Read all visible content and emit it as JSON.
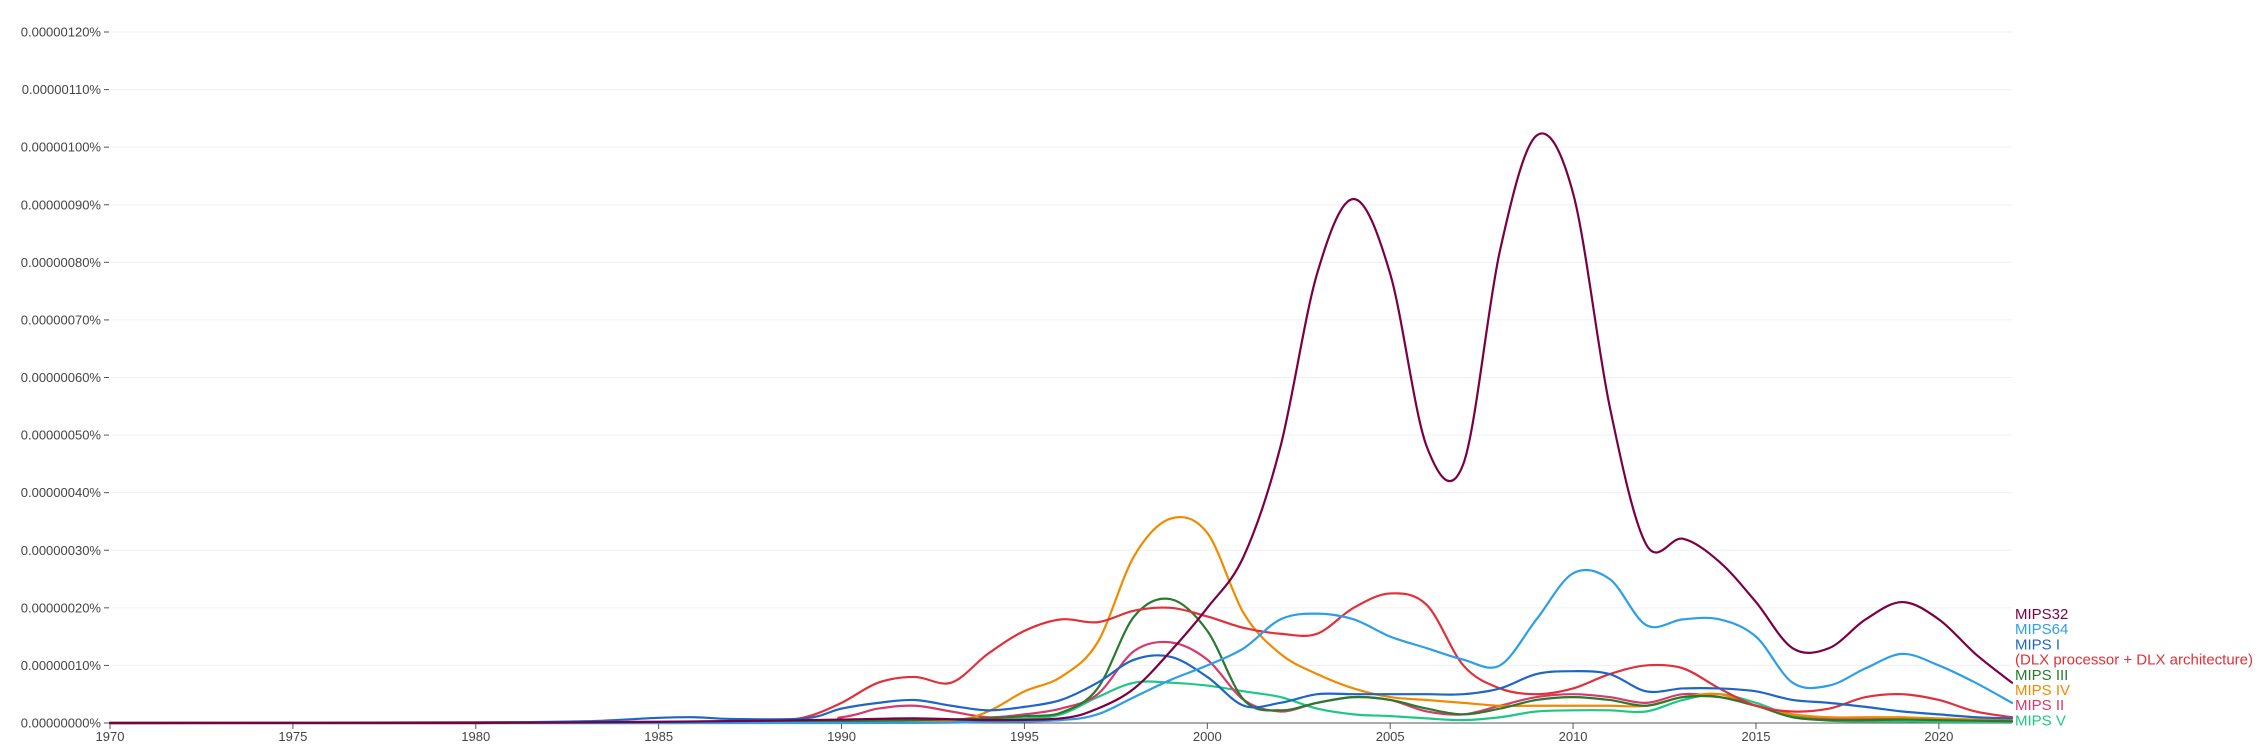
{
  "chart_data": {
    "type": "line",
    "title": "",
    "xlabel": "",
    "ylabel": "",
    "xlim": [
      1970,
      2022
    ],
    "ylim": [
      0,
      1.2e-06
    ],
    "grid": true,
    "legend_placement": "right end of lines",
    "x_ticks": [
      1970,
      1975,
      1980,
      1985,
      1990,
      1995,
      2000,
      2005,
      2010,
      2015,
      2020
    ],
    "x_tick_labels": [
      "1970",
      "1975",
      "1980",
      "1985",
      "1990",
      "1995",
      "2000",
      "2005",
      "2010",
      "2015",
      "2020"
    ],
    "y_ticks": [
      0,
      1e-07,
      2e-07,
      3e-07,
      4e-07,
      5e-07,
      6e-07,
      7e-07,
      8e-07,
      9e-07,
      1e-06,
      1.1e-06,
      1.2e-06
    ],
    "y_tick_labels": [
      "0.00000000%",
      "0.00000010%",
      "0.00000020%",
      "0.00000030%",
      "0.00000040%",
      "0.00000050%",
      "0.00000060%",
      "0.00000070%",
      "0.00000080%",
      "0.00000090%",
      "0.00000100%",
      "0.00000110%",
      "0.00000120%"
    ],
    "series": [
      {
        "name": "MIPS32",
        "color": "#7b0041",
        "points": [
          [
            1970,
            0
          ],
          [
            1980,
            0
          ],
          [
            1985,
            2e-09
          ],
          [
            1988,
            4e-09
          ],
          [
            1990,
            6e-09
          ],
          [
            1992,
            8e-09
          ],
          [
            1994,
            5e-09
          ],
          [
            1996,
            8e-09
          ],
          [
            1997,
            2.5e-08
          ],
          [
            1998,
            6e-08
          ],
          [
            1999,
            1.25e-07
          ],
          [
            2000,
            2e-07
          ],
          [
            2001,
            2.9e-07
          ],
          [
            2002,
            4.8e-07
          ],
          [
            2003,
            7.8e-07
          ],
          [
            2004,
            9.1e-07
          ],
          [
            2005,
            7.8e-07
          ],
          [
            2006,
            4.8e-07
          ],
          [
            2007,
            4.5e-07
          ],
          [
            2008,
            8.2e-07
          ],
          [
            2009,
            1.02e-06
          ],
          [
            2010,
            9.2e-07
          ],
          [
            2011,
            5.5e-07
          ],
          [
            2012,
            3.1e-07
          ],
          [
            2013,
            3.2e-07
          ],
          [
            2014,
            2.8e-07
          ],
          [
            2015,
            2.1e-07
          ],
          [
            2016,
            1.3e-07
          ],
          [
            2017,
            1.3e-07
          ],
          [
            2018,
            1.8e-07
          ],
          [
            2019,
            2.1e-07
          ],
          [
            2020,
            1.8e-07
          ],
          [
            2021,
            1.2e-07
          ],
          [
            2022,
            7e-08
          ]
        ]
      },
      {
        "name": "MIPS64",
        "color": "#2e9fe6",
        "points": [
          [
            1970,
            0
          ],
          [
            1990,
            0
          ],
          [
            1994,
            2e-09
          ],
          [
            1996,
            5e-09
          ],
          [
            1997,
            1.5e-08
          ],
          [
            1998,
            4.5e-08
          ],
          [
            1999,
            7.5e-08
          ],
          [
            2000,
            1e-07
          ],
          [
            2001,
            1.3e-07
          ],
          [
            2002,
            1.8e-07
          ],
          [
            2003,
            1.9e-07
          ],
          [
            2004,
            1.8e-07
          ],
          [
            2005,
            1.5e-07
          ],
          [
            2006,
            1.3e-07
          ],
          [
            2007,
            1.1e-07
          ],
          [
            2008,
            1e-07
          ],
          [
            2009,
            1.8e-07
          ],
          [
            2010,
            2.6e-07
          ],
          [
            2011,
            2.5e-07
          ],
          [
            2012,
            1.7e-07
          ],
          [
            2013,
            1.8e-07
          ],
          [
            2014,
            1.8e-07
          ],
          [
            2015,
            1.5e-07
          ],
          [
            2016,
            7e-08
          ],
          [
            2017,
            6.5e-08
          ],
          [
            2018,
            9.5e-08
          ],
          [
            2019,
            1.2e-07
          ],
          [
            2020,
            1e-07
          ],
          [
            2021,
            7e-08
          ],
          [
            2022,
            3.5e-08
          ]
        ]
      },
      {
        "name": "MIPS I",
        "color": "#1f66c4",
        "points": [
          [
            1970,
            0
          ],
          [
            1980,
            1e-09
          ],
          [
            1983,
            3e-09
          ],
          [
            1985,
            9e-09
          ],
          [
            1986,
            1e-08
          ],
          [
            1987,
            7e-09
          ],
          [
            1989,
            8e-09
          ],
          [
            1990,
            2.5e-08
          ],
          [
            1991,
            3.5e-08
          ],
          [
            1992,
            4e-08
          ],
          [
            1993,
            3e-08
          ],
          [
            1994,
            2.2e-08
          ],
          [
            1995,
            2.8e-08
          ],
          [
            1996,
            4e-08
          ],
          [
            1997,
            7e-08
          ],
          [
            1998,
            1.1e-07
          ],
          [
            1999,
            1.15e-07
          ],
          [
            2000,
            8e-08
          ],
          [
            2001,
            3e-08
          ],
          [
            2002,
            3.5e-08
          ],
          [
            2003,
            5e-08
          ],
          [
            2004,
            5e-08
          ],
          [
            2005,
            5e-08
          ],
          [
            2006,
            5e-08
          ],
          [
            2007,
            5e-08
          ],
          [
            2008,
            6e-08
          ],
          [
            2009,
            8.5e-08
          ],
          [
            2010,
            9e-08
          ],
          [
            2011,
            8.5e-08
          ],
          [
            2012,
            5.5e-08
          ],
          [
            2013,
            6e-08
          ],
          [
            2014,
            6e-08
          ],
          [
            2015,
            5.5e-08
          ],
          [
            2016,
            4e-08
          ],
          [
            2017,
            3.5e-08
          ],
          [
            2018,
            2.8e-08
          ],
          [
            2019,
            2e-08
          ],
          [
            2020,
            1.5e-08
          ],
          [
            2021,
            1e-08
          ],
          [
            2022,
            8e-09
          ]
        ]
      },
      {
        "name": "(DLX processor + DLX architecture)",
        "color": "#e0303a",
        "points": [
          [
            1970,
            0
          ],
          [
            1985,
            2e-09
          ],
          [
            1988,
            5e-09
          ],
          [
            1989,
            1e-08
          ],
          [
            1990,
            3.5e-08
          ],
          [
            1991,
            7e-08
          ],
          [
            1992,
            8e-08
          ],
          [
            1993,
            7e-08
          ],
          [
            1994,
            1.2e-07
          ],
          [
            1995,
            1.6e-07
          ],
          [
            1996,
            1.8e-07
          ],
          [
            1997,
            1.75e-07
          ],
          [
            1998,
            1.95e-07
          ],
          [
            1999,
            2e-07
          ],
          [
            2000,
            1.85e-07
          ],
          [
            2001,
            1.65e-07
          ],
          [
            2002,
            1.55e-07
          ],
          [
            2003,
            1.55e-07
          ],
          [
            2004,
            2e-07
          ],
          [
            2005,
            2.25e-07
          ],
          [
            2006,
            2.05e-07
          ],
          [
            2007,
            1e-07
          ],
          [
            2008,
            6e-08
          ],
          [
            2009,
            5e-08
          ],
          [
            2010,
            6e-08
          ],
          [
            2011,
            8.5e-08
          ],
          [
            2012,
            1e-07
          ],
          [
            2013,
            9.5e-08
          ],
          [
            2014,
            6e-08
          ],
          [
            2015,
            3e-08
          ],
          [
            2016,
            2e-08
          ],
          [
            2017,
            2.5e-08
          ],
          [
            2018,
            4.5e-08
          ],
          [
            2019,
            5e-08
          ],
          [
            2020,
            4e-08
          ],
          [
            2021,
            2e-08
          ],
          [
            2022,
            1e-08
          ]
        ]
      },
      {
        "name": "MIPS III",
        "color": "#2a7a2e",
        "points": [
          [
            1970,
            0
          ],
          [
            1985,
            0
          ],
          [
            1990,
            3e-09
          ],
          [
            1992,
            5e-09
          ],
          [
            1994,
            8e-09
          ],
          [
            1995,
            1.2e-08
          ],
          [
            1996,
            1.8e-08
          ],
          [
            1997,
            6e-08
          ],
          [
            1998,
            1.85e-07
          ],
          [
            1999,
            2.15e-07
          ],
          [
            2000,
            1.6e-07
          ],
          [
            2001,
            4e-08
          ],
          [
            2002,
            2.2e-08
          ],
          [
            2003,
            3.5e-08
          ],
          [
            2004,
            4.5e-08
          ],
          [
            2005,
            4e-08
          ],
          [
            2006,
            2.5e-08
          ],
          [
            2007,
            1.5e-08
          ],
          [
            2008,
            2.5e-08
          ],
          [
            2009,
            4e-08
          ],
          [
            2010,
            4.5e-08
          ],
          [
            2011,
            4e-08
          ],
          [
            2012,
            3e-08
          ],
          [
            2013,
            4.5e-08
          ],
          [
            2014,
            4.5e-08
          ],
          [
            2015,
            3e-08
          ],
          [
            2016,
            1e-08
          ],
          [
            2017,
            5e-09
          ],
          [
            2018,
            5e-09
          ],
          [
            2019,
            6e-09
          ],
          [
            2020,
            5e-09
          ],
          [
            2021,
            4e-09
          ],
          [
            2022,
            3e-09
          ]
        ]
      },
      {
        "name": "MIPS IV",
        "color": "#f08a00",
        "points": [
          [
            1970,
            0
          ],
          [
            1990,
            2e-09
          ],
          [
            1993,
            5e-09
          ],
          [
            1994,
            2e-08
          ],
          [
            1995,
            5.5e-08
          ],
          [
            1996,
            8e-08
          ],
          [
            1997,
            1.4e-07
          ],
          [
            1998,
            2.9e-07
          ],
          [
            1999,
            3.55e-07
          ],
          [
            2000,
            3.3e-07
          ],
          [
            2001,
            1.9e-07
          ],
          [
            2002,
            1.2e-07
          ],
          [
            2003,
            8.5e-08
          ],
          [
            2004,
            6e-08
          ],
          [
            2005,
            4.5e-08
          ],
          [
            2006,
            4e-08
          ],
          [
            2007,
            3.5e-08
          ],
          [
            2008,
            3e-08
          ],
          [
            2009,
            3e-08
          ],
          [
            2010,
            3e-08
          ],
          [
            2011,
            3e-08
          ],
          [
            2012,
            3e-08
          ],
          [
            2013,
            4.5e-08
          ],
          [
            2014,
            5e-08
          ],
          [
            2015,
            3e-08
          ],
          [
            2016,
            1.5e-08
          ],
          [
            2017,
            1e-08
          ],
          [
            2018,
            1e-08
          ],
          [
            2019,
            1e-08
          ],
          [
            2020,
            8e-09
          ],
          [
            2021,
            6e-09
          ],
          [
            2022,
            5e-09
          ]
        ]
      },
      {
        "name": "MIPS II",
        "color": "#d63a6a",
        "points": [
          [
            1970,
            0
          ],
          [
            1988,
            2e-09
          ],
          [
            1990,
            1e-08
          ],
          [
            1991,
            2.5e-08
          ],
          [
            1992,
            3e-08
          ],
          [
            1993,
            2e-08
          ],
          [
            1994,
            1e-08
          ],
          [
            1995,
            1.5e-08
          ],
          [
            1996,
            2.5e-08
          ],
          [
            1997,
            5e-08
          ],
          [
            1998,
            1.25e-07
          ],
          [
            1999,
            1.4e-07
          ],
          [
            2000,
            1.1e-07
          ],
          [
            2001,
            4e-08
          ],
          [
            2002,
            2e-08
          ],
          [
            2003,
            3.5e-08
          ],
          [
            2004,
            4.5e-08
          ],
          [
            2005,
            4e-08
          ],
          [
            2006,
            2e-08
          ],
          [
            2007,
            1.5e-08
          ],
          [
            2008,
            3e-08
          ],
          [
            2009,
            4.5e-08
          ],
          [
            2010,
            5e-08
          ],
          [
            2011,
            4.5e-08
          ],
          [
            2012,
            3.5e-08
          ],
          [
            2013,
            5e-08
          ],
          [
            2014,
            4.5e-08
          ],
          [
            2015,
            3e-08
          ],
          [
            2016,
            1.5e-08
          ],
          [
            2017,
            8e-09
          ],
          [
            2018,
            8e-09
          ],
          [
            2019,
            8e-09
          ],
          [
            2020,
            6e-09
          ],
          [
            2021,
            5e-09
          ],
          [
            2022,
            4e-09
          ]
        ]
      },
      {
        "name": "MIPS V",
        "color": "#1ec785",
        "points": [
          [
            1970,
            0
          ],
          [
            1990,
            1e-09
          ],
          [
            1993,
            4e-09
          ],
          [
            1995,
            8e-09
          ],
          [
            1996,
            1.5e-08
          ],
          [
            1997,
            4.5e-08
          ],
          [
            1998,
            7e-08
          ],
          [
            1999,
            7e-08
          ],
          [
            2000,
            6.5e-08
          ],
          [
            2001,
            5.5e-08
          ],
          [
            2002,
            4.5e-08
          ],
          [
            2003,
            2.5e-08
          ],
          [
            2004,
            1.5e-08
          ],
          [
            2005,
            1.2e-08
          ],
          [
            2006,
            8e-09
          ],
          [
            2007,
            5e-09
          ],
          [
            2008,
            1e-08
          ],
          [
            2009,
            2e-08
          ],
          [
            2010,
            2.2e-08
          ],
          [
            2011,
            2.2e-08
          ],
          [
            2012,
            2e-08
          ],
          [
            2013,
            4e-08
          ],
          [
            2014,
            5e-08
          ],
          [
            2015,
            3.5e-08
          ],
          [
            2016,
            1.2e-08
          ],
          [
            2017,
            4e-09
          ],
          [
            2018,
            3e-09
          ],
          [
            2019,
            3e-09
          ],
          [
            2020,
            2e-09
          ],
          [
            2021,
            2e-09
          ],
          [
            2022,
            2e-09
          ]
        ]
      }
    ]
  }
}
